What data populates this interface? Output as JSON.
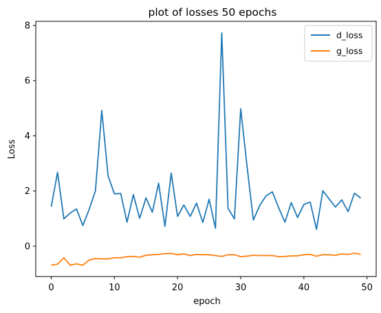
{
  "chart_data": {
    "type": "line",
    "title": "plot of losses 50 epochs",
    "xlabel": "epoch",
    "ylabel": "Loss",
    "xlim": [
      -2.45,
      51.45
    ],
    "ylim": [
      -1.1,
      8.15
    ],
    "xticks": [
      0,
      10,
      20,
      30,
      40,
      50
    ],
    "yticks": [
      0,
      2,
      4,
      6,
      8
    ],
    "grid": false,
    "legend_position": "top-right",
    "x": [
      0,
      1,
      2,
      3,
      4,
      5,
      6,
      7,
      8,
      9,
      10,
      11,
      12,
      13,
      14,
      15,
      16,
      17,
      18,
      19,
      20,
      21,
      22,
      23,
      24,
      25,
      26,
      27,
      28,
      29,
      30,
      31,
      32,
      33,
      34,
      35,
      36,
      37,
      38,
      39,
      40,
      41,
      42,
      43,
      44,
      45,
      46,
      47,
      48,
      49
    ],
    "series": [
      {
        "name": "d_loss",
        "color": "#1f77b4",
        "values": [
          1.43,
          2.68,
          0.99,
          1.2,
          1.35,
          0.75,
          1.33,
          2.01,
          4.92,
          2.55,
          1.9,
          1.91,
          0.87,
          1.87,
          1.01,
          1.75,
          1.23,
          2.28,
          0.72,
          2.65,
          1.08,
          1.49,
          1.08,
          1.56,
          0.86,
          1.7,
          0.65,
          7.73,
          1.37,
          0.99,
          4.98,
          2.9,
          0.95,
          1.47,
          1.82,
          1.97,
          1.4,
          0.87,
          1.58,
          1.04,
          1.51,
          1.6,
          0.61,
          2.01,
          1.71,
          1.42,
          1.68,
          1.25,
          1.92,
          1.74
        ]
      },
      {
        "name": "g_loss",
        "color": "#ff7f0e",
        "values": [
          -0.69,
          -0.65,
          -0.42,
          -0.69,
          -0.64,
          -0.69,
          -0.5,
          -0.45,
          -0.46,
          -0.46,
          -0.42,
          -0.42,
          -0.38,
          -0.37,
          -0.4,
          -0.33,
          -0.31,
          -0.3,
          -0.27,
          -0.26,
          -0.31,
          -0.28,
          -0.34,
          -0.3,
          -0.31,
          -0.31,
          -0.34,
          -0.37,
          -0.31,
          -0.31,
          -0.38,
          -0.36,
          -0.33,
          -0.34,
          -0.34,
          -0.34,
          -0.38,
          -0.37,
          -0.35,
          -0.35,
          -0.31,
          -0.3,
          -0.36,
          -0.31,
          -0.31,
          -0.33,
          -0.28,
          -0.3,
          -0.25,
          -0.3
        ]
      }
    ]
  }
}
